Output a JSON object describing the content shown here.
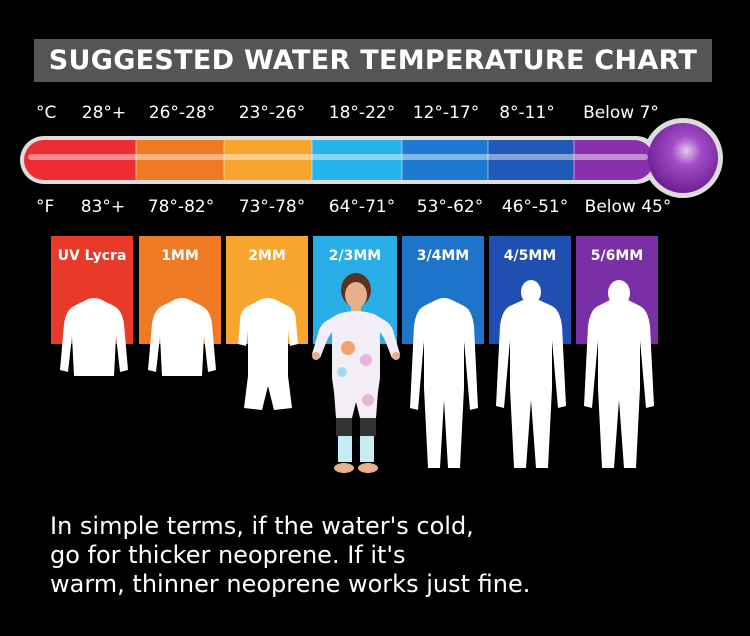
{
  "title": "SUGGESTED WATER TEMPERATURE CHART",
  "celsius": {
    "unit": "°C",
    "ranges": [
      "28°+",
      "26°-28°",
      "23°-26°",
      "18°-22°",
      "12°-17°",
      "8°-11°",
      "Below 7°"
    ]
  },
  "fahrenheit": {
    "unit": "°F",
    "ranges": [
      "83°+",
      "78°-82°",
      "73°-78°",
      "64°-71°",
      "53°-62°",
      "46°-51°",
      "Below 45°"
    ]
  },
  "suits": [
    {
      "label": "UV Lycra",
      "color": "#e8392a",
      "icon": "rashguard-icon"
    },
    {
      "label": "1MM",
      "color": "#f07a23",
      "icon": "top-icon"
    },
    {
      "label": "2MM",
      "color": "#f7a52c",
      "icon": "shorty-icon"
    },
    {
      "label": "2/3MM",
      "color": "#2aaee8",
      "icon": "child-model-photo"
    },
    {
      "label": "3/4MM",
      "color": "#1d74c9",
      "icon": "fullsuit-icon"
    },
    {
      "label": "4/5MM",
      "color": "#1f4fb0",
      "icon": "fullsuit-icon"
    },
    {
      "label": "5/6MM",
      "color": "#7b2fa6",
      "icon": "fullsuit-hood-icon"
    }
  ],
  "thermometer_colors": [
    "#ee2c33",
    "#f07a22",
    "#f7a52c",
    "#26b4ec",
    "#1d7ad0",
    "#2059b8",
    "#8a2fae"
  ],
  "caption": [
    "In simple terms, if the water's cold,",
    "go for thicker neoprene. If it's",
    "warm, thinner neoprene works just fine."
  ]
}
